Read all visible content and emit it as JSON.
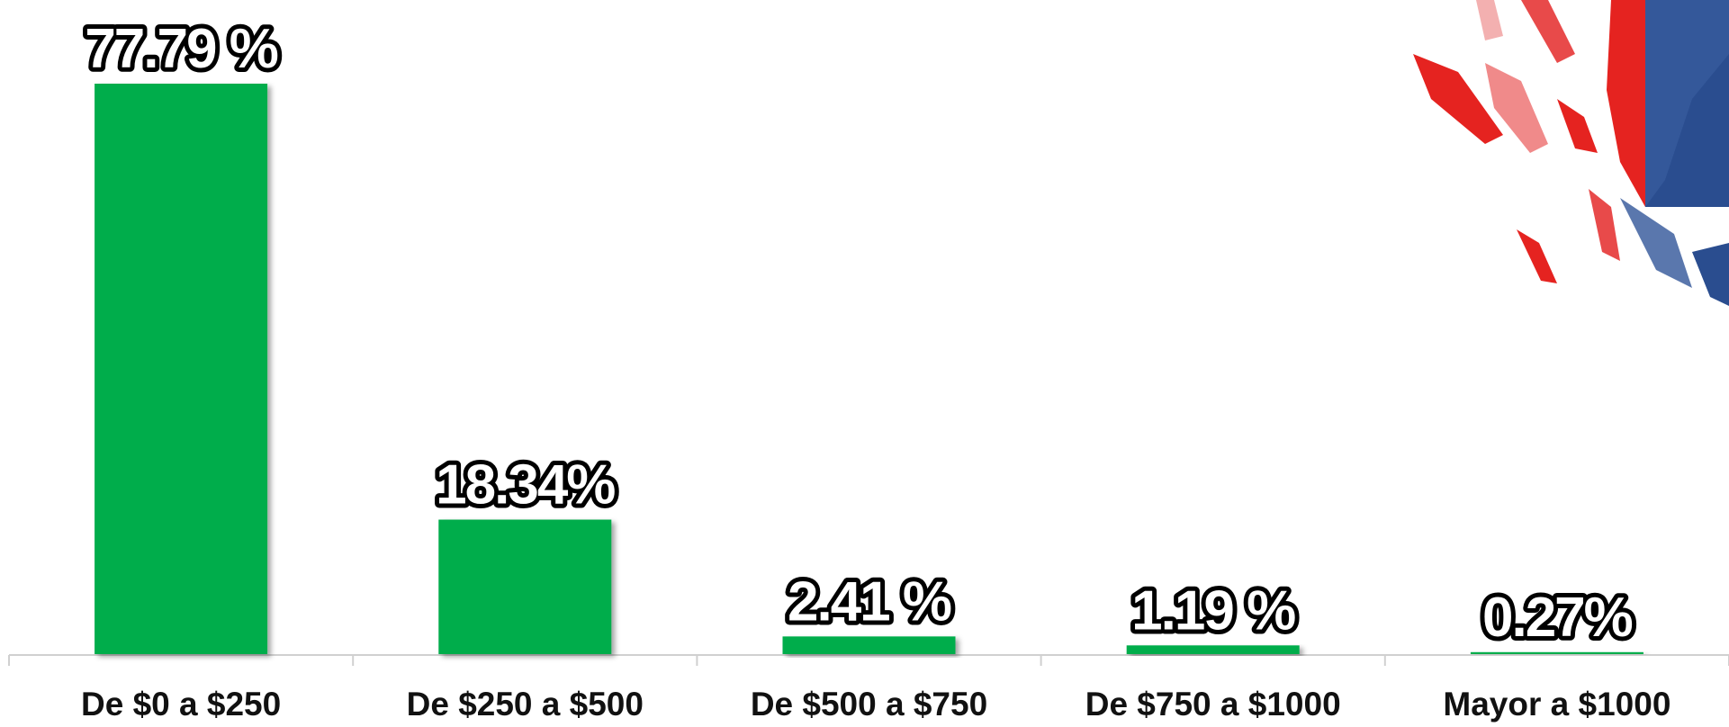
{
  "chart_data": {
    "type": "bar",
    "categories": [
      "De $0 a $250",
      "De $250 a $500",
      "De $500 a $750",
      "De $750 a $1000",
      "Mayor a $1000"
    ],
    "values": [
      77.79,
      18.34,
      2.41,
      1.19,
      0.27
    ],
    "value_labels": [
      "77.79 %",
      "18.34%",
      "2.41 %",
      "1.19 %",
      "0.27%"
    ],
    "color": "#00ad4b"
  }
}
